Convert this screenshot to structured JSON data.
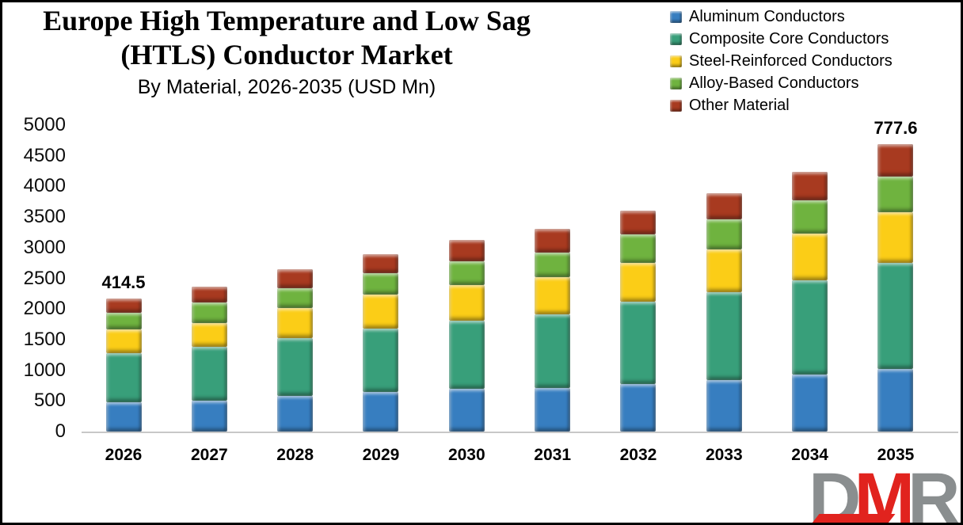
{
  "chart_data": {
    "type": "bar",
    "stacked": true,
    "title_line1": "Europe High Temperature and Low Sag",
    "title_line2": "(HTLS) Conductor Market",
    "subtitle": "By Material, 2026-2035 (USD Mn)",
    "categories": [
      "2026",
      "2027",
      "2028",
      "2029",
      "2030",
      "2031",
      "2032",
      "2033",
      "2034",
      "2035"
    ],
    "series": [
      {
        "name": "Aluminum Conductors",
        "color": "#377EC0",
        "values": [
          480,
          505,
          585,
          650,
          700,
          715,
          780,
          845,
          935,
          1025
        ]
      },
      {
        "name": "Composite Core Conductors",
        "color": "#389F7A",
        "values": [
          800,
          880,
          945,
          1035,
          1115,
          1195,
          1335,
          1425,
          1530,
          1725
        ]
      },
      {
        "name": "Steel-Reinforced Conductors",
        "color": "#FBCD17",
        "values": [
          390,
          390,
          480,
          545,
          570,
          610,
          635,
          700,
          765,
          830
        ]
      },
      {
        "name": "Alloy-Based Conductors",
        "color": "#6FB33F",
        "values": [
          265,
          325,
          325,
          350,
          390,
          400,
          465,
          495,
          545,
          585
        ]
      },
      {
        "name": "Other Material",
        "color": "#A83A20",
        "values": [
          230,
          260,
          310,
          310,
          350,
          390,
          390,
          430,
          465,
          520
        ]
      }
    ],
    "totals": [
      2165,
      2360,
      2645,
      2890,
      3125,
      3310,
      3605,
      3895,
      4240,
      4685
    ],
    "annotations": [
      {
        "category": "2026",
        "text": "414.5"
      },
      {
        "category": "2035",
        "text": "777.6"
      }
    ],
    "y_axis": {
      "min": 0,
      "max": 5000,
      "step": 500
    },
    "grid": false,
    "legend_position": "top-right",
    "axis_line_color": "#c8c8c8"
  },
  "logo": {
    "d": "D",
    "m": "M",
    "r": "R",
    "gray": "#8A8E8F",
    "red": "#E1231E"
  }
}
